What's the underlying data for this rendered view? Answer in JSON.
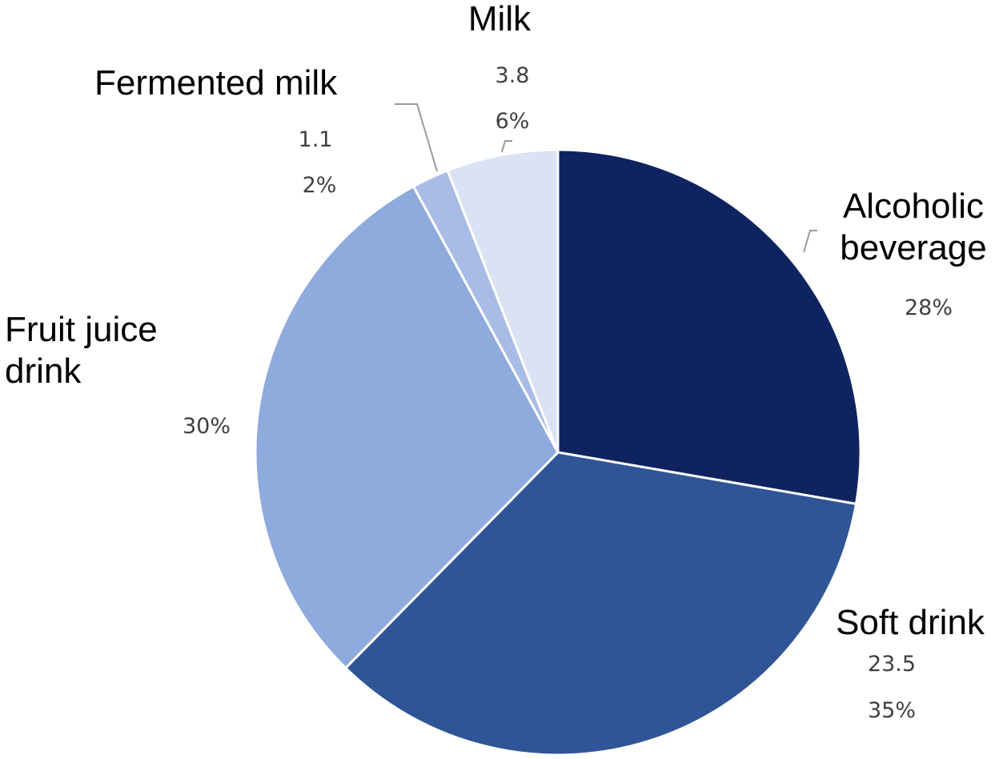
{
  "chart_data": {
    "type": "pie",
    "start_angle_deg": 0,
    "direction": "clockwise",
    "slices": [
      {
        "label": "Alcoholic beverage",
        "label_lines": [
          "Alcoholic",
          "beverage"
        ],
        "value_text": "",
        "percent": 28,
        "percent_text": "28%",
        "color": "#0f2361"
      },
      {
        "label": "Soft drink",
        "label_lines": [
          "Soft drink"
        ],
        "value": 23.5,
        "value_text": "23.5",
        "percent": 35,
        "percent_text": "35%",
        "color": "#2f5597"
      },
      {
        "label": "Fruit juice drink",
        "label_lines": [
          "Fruit juice",
          "drink"
        ],
        "value_text": "",
        "percent": 30,
        "percent_text": "30%",
        "color": "#8faadc"
      },
      {
        "label": "Fermented milk",
        "label_lines": [
          "Fermented milk"
        ],
        "value": 1.1,
        "value_text": "1.1",
        "percent": 2,
        "percent_text": "2%",
        "color": "#a9bce6"
      },
      {
        "label": "Milk",
        "label_lines": [
          "Milk"
        ],
        "value": 3.8,
        "value_text": "3.8",
        "percent": 6,
        "percent_text": "6%",
        "color": "#dae3f3"
      }
    ]
  }
}
